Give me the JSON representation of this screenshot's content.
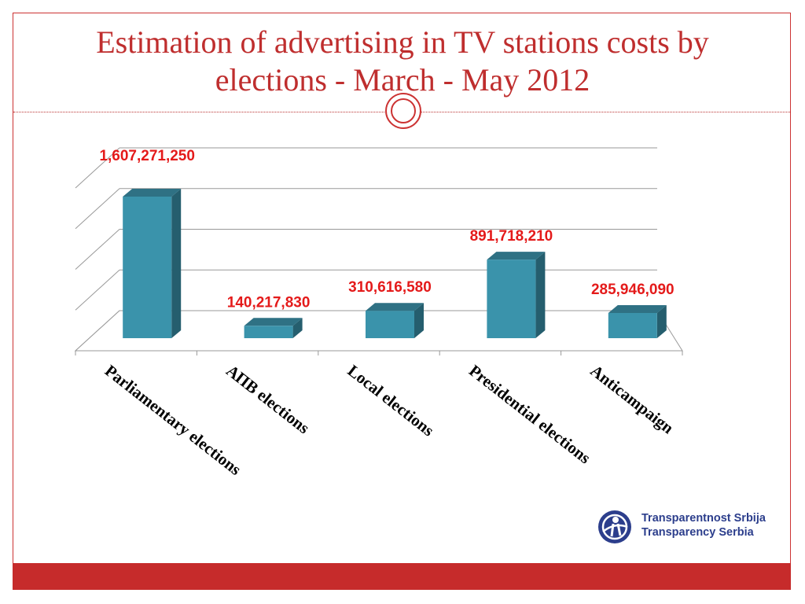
{
  "slide": {
    "title_line1": "Estimation of advertising in TV stations costs by",
    "title_line2": "elections - March - May 2012"
  },
  "chart_data": {
    "type": "bar",
    "categories": [
      "Parliamentary elections",
      "АПВ elections",
      "Local elections",
      "Presidential elections",
      "Anticampaign"
    ],
    "values": [
      1607271250,
      140217830,
      310616580,
      891718210,
      285946090
    ],
    "data_labels": [
      "1,607,271,250",
      "140,217,830",
      "310,616,580",
      "891,718,210",
      "285,946,090"
    ],
    "bar_color": "#3a93ab",
    "label_color": "#e41a1a",
    "grid": true,
    "three_d": true
  },
  "logo": {
    "line1": "Transparentnost Srbija",
    "line2": "Transparency Serbia",
    "icon": "globe-logo-icon",
    "color": "#2c3e8c"
  },
  "colors": {
    "accent": "#c62b2b"
  }
}
